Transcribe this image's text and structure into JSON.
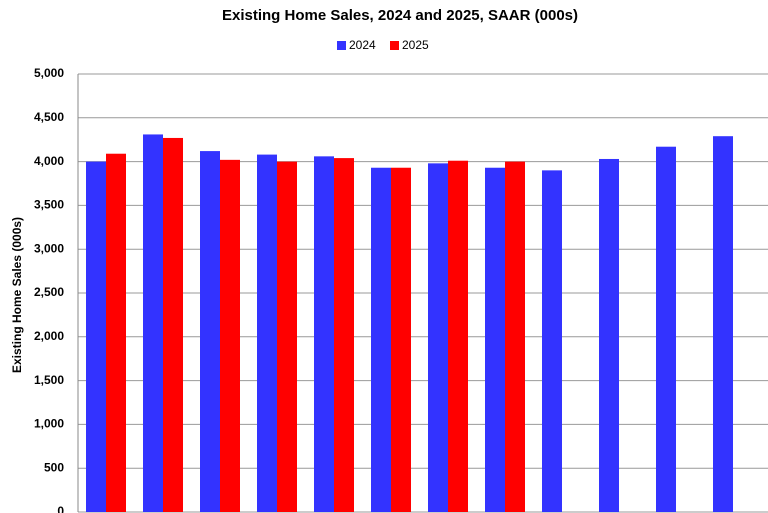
{
  "chart_data": {
    "type": "bar",
    "title": "Existing Home Sales,  2024 and 2025, SAAR (000s)",
    "y_label": "Existing Home Sales (000s)",
    "categories": [
      null,
      null,
      null,
      null,
      null,
      null,
      null,
      null,
      null,
      null,
      null,
      null
    ],
    "series": [
      {
        "name": "2024",
        "color": "#3333ff",
        "values": [
          4000,
          4310,
          4120,
          4080,
          4060,
          3930,
          3980,
          3930,
          3900,
          4030,
          4170,
          4290
        ]
      },
      {
        "name": "2025",
        "color": "#ff0000",
        "values": [
          4090,
          4270,
          4020,
          4000,
          4040,
          3930,
          4010,
          4000,
          null,
          null,
          null,
          null
        ]
      }
    ],
    "ylim": [
      0,
      5000
    ],
    "yticks": [
      0,
      500,
      {
        "value": 1000,
        "label": "1,000"
      },
      {
        "value": 1500,
        "label": "1,500"
      },
      {
        "value": 2000,
        "label": "2,000"
      },
      {
        "value": 2500,
        "label": "2,500"
      },
      {
        "value": 3000,
        "label": "3,000"
      },
      {
        "value": 3500,
        "label": "3,500"
      },
      {
        "value": 4000,
        "label": "4,000"
      },
      {
        "value": 4500,
        "label": "4,500"
      },
      {
        "value": 5000,
        "label": "5,000"
      }
    ],
    "grid": true,
    "legend": "top"
  }
}
